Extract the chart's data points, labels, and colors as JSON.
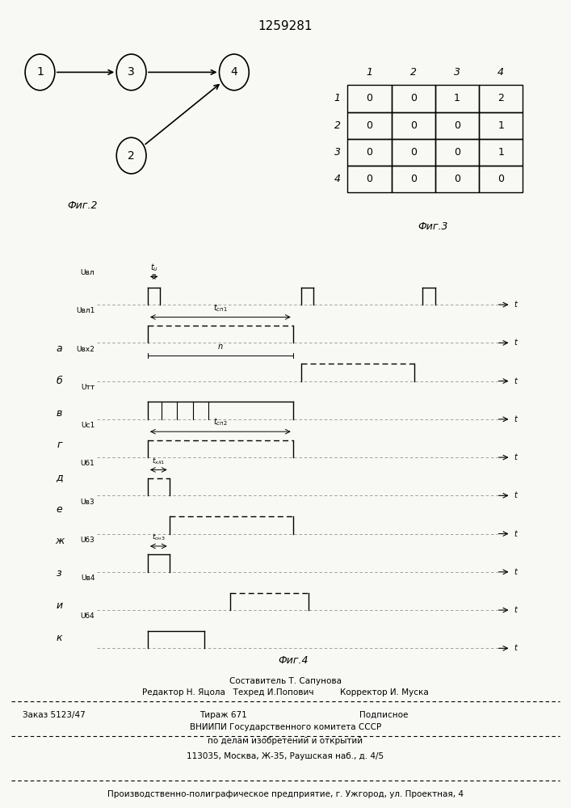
{
  "title": "1259281",
  "bg_color": "#f8f8f4",
  "fig2_caption": "Фиг.2",
  "fig3_caption": "Фиг.3",
  "fig4_caption": "Фиг.4",
  "matrix": [
    [
      0,
      0,
      1,
      2
    ],
    [
      0,
      0,
      0,
      1
    ],
    [
      0,
      0,
      0,
      1
    ],
    [
      0,
      0,
      0,
      0
    ]
  ],
  "matrix_col_labels": [
    "1",
    "2",
    "3",
    "4"
  ],
  "matrix_row_labels": [
    "1",
    "2",
    "3",
    "4"
  ],
  "waveform_labels_left": [
    "а",
    "б",
    "в",
    "г",
    "д",
    "е",
    "ж",
    "з",
    "и",
    "к"
  ],
  "ylabel_texts": [
    "Uвл",
    "Uвл1",
    "Uвх2",
    "Uтт",
    "Uс1",
    "Uб1",
    "Uв3",
    "Uб3",
    "Uв4",
    "Uб4"
  ],
  "footnote_line1": "Составитель Т. Сапунова",
  "footnote_line2": "Редактор Н. Яцола   Техред И.Попович          Корректор И. Муска",
  "footnote_order": "Заказ 5123/47",
  "footnote_tirazh": "Тираж 671",
  "footnote_podp": "Подписное",
  "footnote_line4": "ВНИИПИ Государственного комитета СССР",
  "footnote_line5": "по делам изобретений и открытий",
  "footnote_line6": "113035, Москва, Ж-35, Раушская наб., д. 4/5",
  "footnote_line7": "Производственно-полиграфическое предприятие, г. Ужгород, ул. Проектная, 4"
}
